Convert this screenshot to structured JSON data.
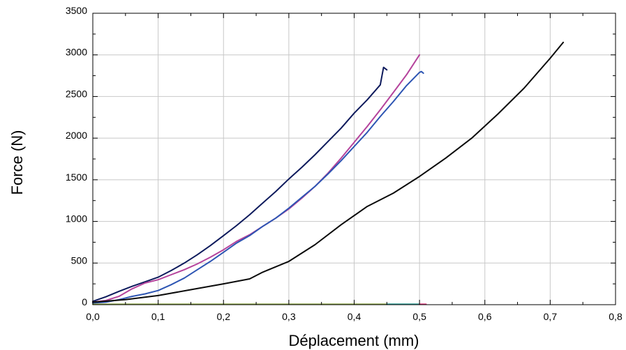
{
  "chart_data": {
    "type": "line",
    "title": "",
    "xlabel": "Déplacement (mm)",
    "ylabel": "Force (N)",
    "xlim": [
      0,
      0.8
    ],
    "ylim": [
      0,
      3500
    ],
    "x_ticks": [
      0,
      0.1,
      0.2,
      0.3,
      0.4,
      0.5,
      0.6,
      0.7,
      0.8
    ],
    "x_tick_labels": [
      "0,0",
      "0,1",
      "0,2",
      "0,3",
      "0,4",
      "0,5",
      "0,6",
      "0,7",
      "0,8"
    ],
    "y_ticks": [
      0,
      500,
      1000,
      1500,
      2000,
      2500,
      3000,
      3500
    ],
    "y_tick_labels": [
      "0",
      "500",
      "1000",
      "1500",
      "2000",
      "2500",
      "3000",
      "3500"
    ],
    "grid": true,
    "legend": "none",
    "series": [
      {
        "color": "#0d1a5c",
        "x": [
          0,
          0.02,
          0.04,
          0.06,
          0.08,
          0.1,
          0.12,
          0.14,
          0.16,
          0.18,
          0.2,
          0.22,
          0.24,
          0.26,
          0.28,
          0.3,
          0.32,
          0.34,
          0.36,
          0.38,
          0.4,
          0.42,
          0.44,
          0.445,
          0.45
        ],
        "y": [
          40,
          95,
          160,
          220,
          275,
          330,
          410,
          500,
          600,
          710,
          830,
          950,
          1080,
          1220,
          1360,
          1510,
          1650,
          1800,
          1960,
          2120,
          2300,
          2460,
          2640,
          2850,
          2820
        ]
      },
      {
        "color": "#b5439c",
        "x": [
          0,
          0.02,
          0.04,
          0.06,
          0.08,
          0.1,
          0.12,
          0.14,
          0.16,
          0.18,
          0.2,
          0.22,
          0.24,
          0.26,
          0.28,
          0.3,
          0.32,
          0.34,
          0.36,
          0.38,
          0.4,
          0.42,
          0.44,
          0.46,
          0.48,
          0.5
        ],
        "y": [
          30,
          50,
          100,
          190,
          260,
          300,
          360,
          420,
          490,
          570,
          660,
          760,
          840,
          940,
          1040,
          1150,
          1280,
          1420,
          1580,
          1760,
          1950,
          2140,
          2340,
          2550,
          2760,
          3000
        ]
      },
      {
        "color": "#2d55b3",
        "x": [
          0,
          0.02,
          0.04,
          0.06,
          0.08,
          0.1,
          0.12,
          0.14,
          0.16,
          0.18,
          0.2,
          0.22,
          0.24,
          0.26,
          0.28,
          0.3,
          0.32,
          0.34,
          0.36,
          0.38,
          0.4,
          0.42,
          0.44,
          0.46,
          0.48,
          0.5,
          0.503,
          0.506
        ],
        "y": [
          20,
          30,
          60,
          100,
          130,
          170,
          240,
          320,
          420,
          520,
          630,
          740,
          830,
          940,
          1040,
          1160,
          1290,
          1420,
          1570,
          1730,
          1900,
          2070,
          2260,
          2440,
          2630,
          2790,
          2800,
          2780
        ]
      },
      {
        "color": "#0a0a0a",
        "x": [
          0,
          0.05,
          0.1,
          0.15,
          0.2,
          0.24,
          0.26,
          0.3,
          0.34,
          0.38,
          0.42,
          0.46,
          0.5,
          0.54,
          0.58,
          0.62,
          0.66,
          0.7,
          0.72
        ],
        "y": [
          30,
          60,
          110,
          180,
          250,
          310,
          390,
          520,
          720,
          960,
          1180,
          1340,
          1540,
          1760,
          2000,
          2290,
          2600,
          2960,
          3150
        ]
      },
      {
        "color": "#8aa340",
        "x": [
          0,
          0.5
        ],
        "y": [
          5,
          5
        ]
      },
      {
        "color": "#2aa0a0",
        "x": [
          0.45,
          0.5
        ],
        "y": [
          5,
          5
        ]
      },
      {
        "color": "#e0327a",
        "x": [
          0.5,
          0.51
        ],
        "y": [
          5,
          5
        ]
      }
    ]
  }
}
